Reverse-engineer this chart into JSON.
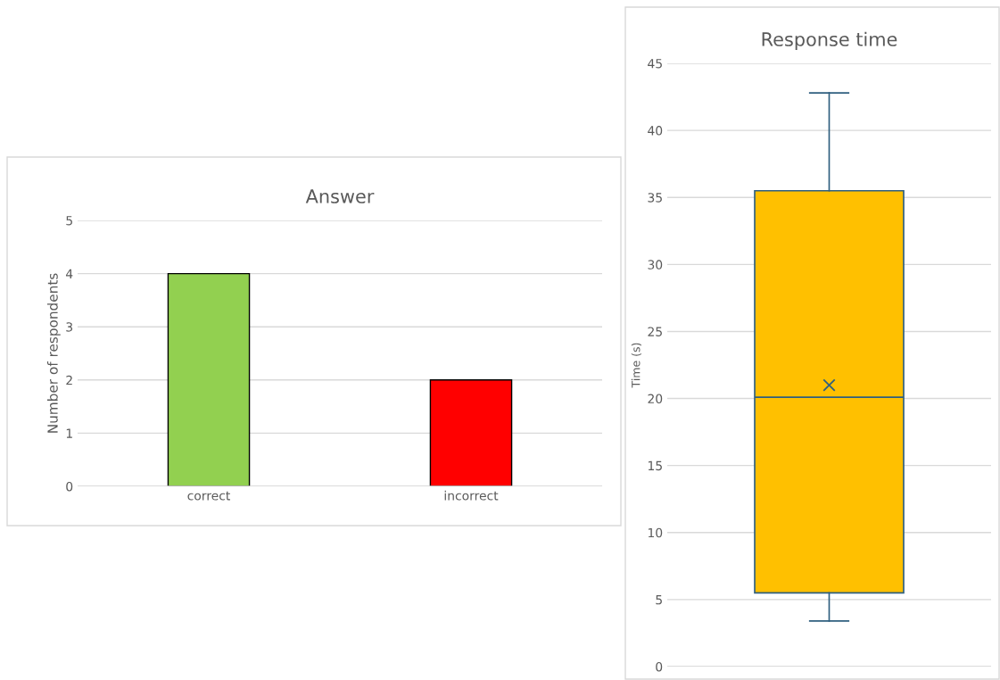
{
  "chart_data": [
    {
      "type": "bar",
      "title": "Answer",
      "ylabel": "Number of respondents",
      "categories": [
        "correct",
        "incorrect"
      ],
      "values": [
        4,
        2
      ],
      "colors": [
        "#92d050",
        "#ff0000"
      ],
      "ylim": [
        0,
        5
      ],
      "yticks": [
        0,
        1,
        2,
        3,
        4,
        5
      ],
      "grid": "y",
      "legend": false
    },
    {
      "type": "box",
      "title": "Response time",
      "ylabel": "Time (s)",
      "categories": [
        null
      ],
      "boxes": [
        {
          "low": 3.4,
          "q1": 5.5,
          "median": 20.1,
          "q3": 35.5,
          "high": 42.8,
          "mean": 21
        }
      ],
      "color": "#ffc000",
      "ylim": [
        0,
        45
      ],
      "yticks": [
        0,
        5,
        10,
        15,
        20,
        25,
        30,
        35,
        40,
        45
      ],
      "grid": "y",
      "tick_labels": "y",
      "legend": false
    }
  ]
}
